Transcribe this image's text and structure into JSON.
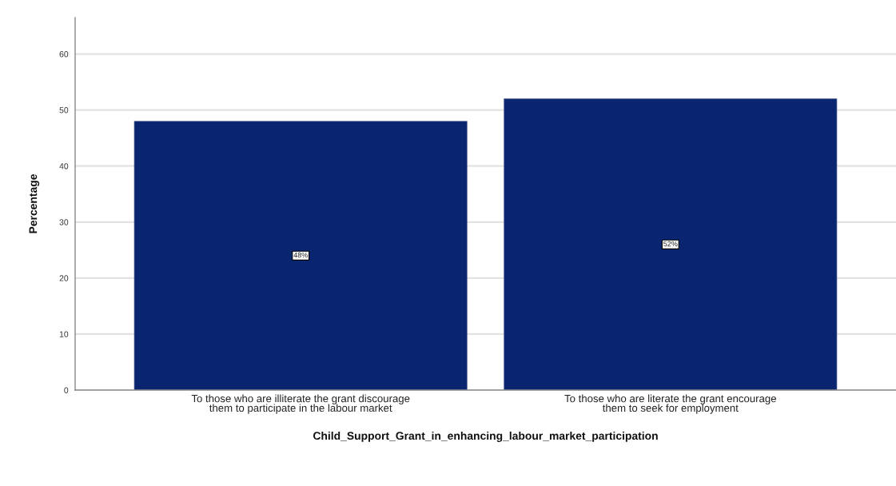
{
  "chart_data": {
    "type": "bar",
    "categories": [
      "To those who are illiterate the grant discourage\nthem to participate in the labour market",
      "To those who are literate the grant encourage\nthem to seek for employment"
    ],
    "values": [
      48,
      52
    ],
    "color": "#0a2570",
    "value_labels": [
      "48%",
      "52%"
    ],
    "xlabel": "Child_Support_Grant_in_enhancing_labour_market_participation",
    "ylabel": "Percentage",
    "ylim": [
      0,
      66.5
    ],
    "yticks": [
      0,
      10,
      20,
      30,
      40,
      50,
      60
    ],
    "grid": "y"
  }
}
